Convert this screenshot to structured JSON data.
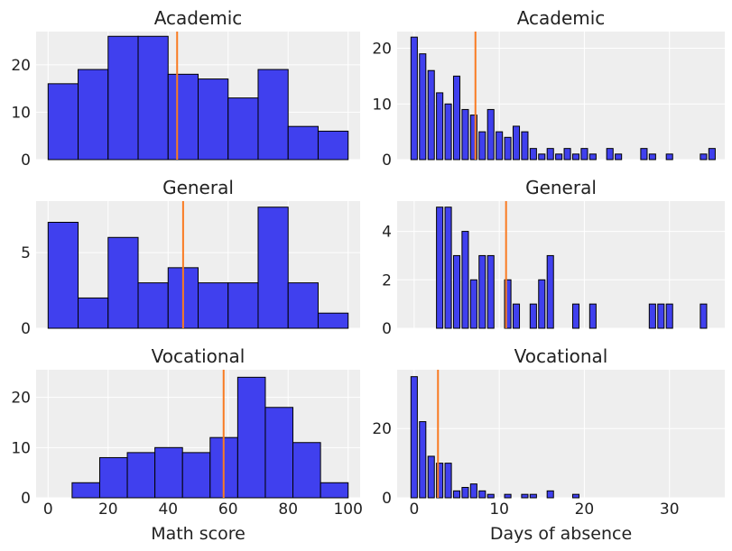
{
  "figure": {
    "colors": {
      "background": "#eeeeee",
      "bar": "#4040ee",
      "bar_edge": "#000000",
      "mean_line": "#f97b22",
      "grid": "#ffffff"
    }
  },
  "chart_data": [
    {
      "id": "math-academic",
      "type": "bar",
      "title": "Academic",
      "xlabel": "",
      "ylabel": "",
      "xlim": [
        -4,
        104
      ],
      "ylim": [
        0,
        27
      ],
      "yticks": [
        0,
        10,
        20
      ],
      "xticks": [
        0,
        20,
        40,
        60,
        80,
        100
      ],
      "show_xtick_labels": false,
      "bin_edges": [
        0,
        10,
        20,
        30,
        40,
        50,
        60,
        70,
        80,
        90,
        100
      ],
      "values": [
        16,
        19,
        26,
        26,
        18,
        17,
        13,
        19,
        7,
        6
      ],
      "mean": 43
    },
    {
      "id": "absence-academic",
      "type": "bar",
      "title": "Academic",
      "xlabel": "",
      "ylabel": "",
      "xlim": [
        -2,
        36.5
      ],
      "ylim": [
        0,
        23
      ],
      "yticks": [
        0,
        10,
        20
      ],
      "xticks": [
        0,
        10,
        20,
        30
      ],
      "show_xtick_labels": false,
      "bin_width": 0.75,
      "bins": [
        [
          0,
          22
        ],
        [
          1,
          19
        ],
        [
          2,
          16
        ],
        [
          3,
          12
        ],
        [
          4,
          10
        ],
        [
          5,
          15
        ],
        [
          6,
          9
        ],
        [
          7,
          8
        ],
        [
          8,
          5
        ],
        [
          9,
          9
        ],
        [
          10,
          5
        ],
        [
          11,
          4
        ],
        [
          12,
          6
        ],
        [
          13,
          5
        ],
        [
          14,
          2
        ],
        [
          15,
          1
        ],
        [
          16,
          2
        ],
        [
          17,
          1
        ],
        [
          18,
          2
        ],
        [
          19,
          1
        ],
        [
          20,
          2
        ],
        [
          21,
          1
        ],
        [
          23,
          2
        ],
        [
          24,
          1
        ],
        [
          27,
          2
        ],
        [
          28,
          1
        ],
        [
          30,
          1
        ],
        [
          34,
          1
        ],
        [
          35,
          2
        ]
      ],
      "mean": 7.2
    },
    {
      "id": "math-general",
      "type": "bar",
      "title": "General",
      "xlabel": "",
      "ylabel": "",
      "xlim": [
        -4,
        104
      ],
      "ylim": [
        0,
        8.4
      ],
      "yticks": [
        0,
        5
      ],
      "xticks": [
        0,
        20,
        40,
        60,
        80,
        100
      ],
      "show_xtick_labels": false,
      "bin_edges": [
        0,
        10,
        20,
        30,
        40,
        50,
        60,
        70,
        80,
        90,
        100
      ],
      "values": [
        7,
        2,
        6,
        3,
        4,
        3,
        3,
        8,
        3,
        1
      ],
      "mean": 45
    },
    {
      "id": "absence-general",
      "type": "bar",
      "title": "General",
      "xlabel": "",
      "ylabel": "",
      "xlim": [
        -2,
        36.5
      ],
      "ylim": [
        0,
        5.25
      ],
      "yticks": [
        0,
        2,
        4
      ],
      "xticks": [
        0,
        10,
        20,
        30
      ],
      "show_xtick_labels": false,
      "bin_width": 0.75,
      "bins": [
        [
          3,
          5
        ],
        [
          4,
          5
        ],
        [
          5,
          3
        ],
        [
          6,
          4
        ],
        [
          7,
          2
        ],
        [
          8,
          3
        ],
        [
          9,
          3
        ],
        [
          11,
          2
        ],
        [
          12,
          1
        ],
        [
          14,
          1
        ],
        [
          15,
          2
        ],
        [
          16,
          3
        ],
        [
          19,
          1
        ],
        [
          21,
          1
        ],
        [
          28,
          1
        ],
        [
          29,
          1
        ],
        [
          30,
          1
        ],
        [
          34,
          1
        ]
      ],
      "mean": 10.8
    },
    {
      "id": "math-vocational",
      "type": "bar",
      "title": "Vocational",
      "xlabel": "Math score",
      "ylabel": "",
      "xlim": [
        -4,
        104
      ],
      "ylim": [
        0,
        25.5
      ],
      "yticks": [
        0,
        10,
        20
      ],
      "xticks": [
        0,
        20,
        40,
        60,
        80,
        100
      ],
      "show_xtick_labels": true,
      "bin_edges": [
        8,
        17.2,
        26.4,
        35.6,
        44.8,
        54,
        63.2,
        72.4,
        81.6,
        90.8,
        100
      ],
      "values": [
        3,
        8,
        9,
        10,
        9,
        12,
        24,
        18,
        11,
        3
      ],
      "mean": 58.5
    },
    {
      "id": "absence-vocational",
      "type": "bar",
      "title": "Vocational",
      "xlabel": "Days of absence",
      "ylabel": "",
      "xlim": [
        -2,
        36.5
      ],
      "ylim": [
        0,
        37
      ],
      "yticks": [
        0,
        20
      ],
      "xticks": [
        0,
        10,
        20,
        30
      ],
      "show_xtick_labels": true,
      "bin_width": 0.75,
      "bins": [
        [
          0,
          35
        ],
        [
          1,
          22
        ],
        [
          2,
          12
        ],
        [
          3,
          10
        ],
        [
          4,
          10
        ],
        [
          5,
          2
        ],
        [
          6,
          3
        ],
        [
          7,
          4
        ],
        [
          8,
          2
        ],
        [
          9,
          1
        ],
        [
          11,
          1
        ],
        [
          13,
          1
        ],
        [
          14,
          1
        ],
        [
          16,
          2
        ],
        [
          19,
          1
        ]
      ],
      "mean": 2.8
    }
  ]
}
